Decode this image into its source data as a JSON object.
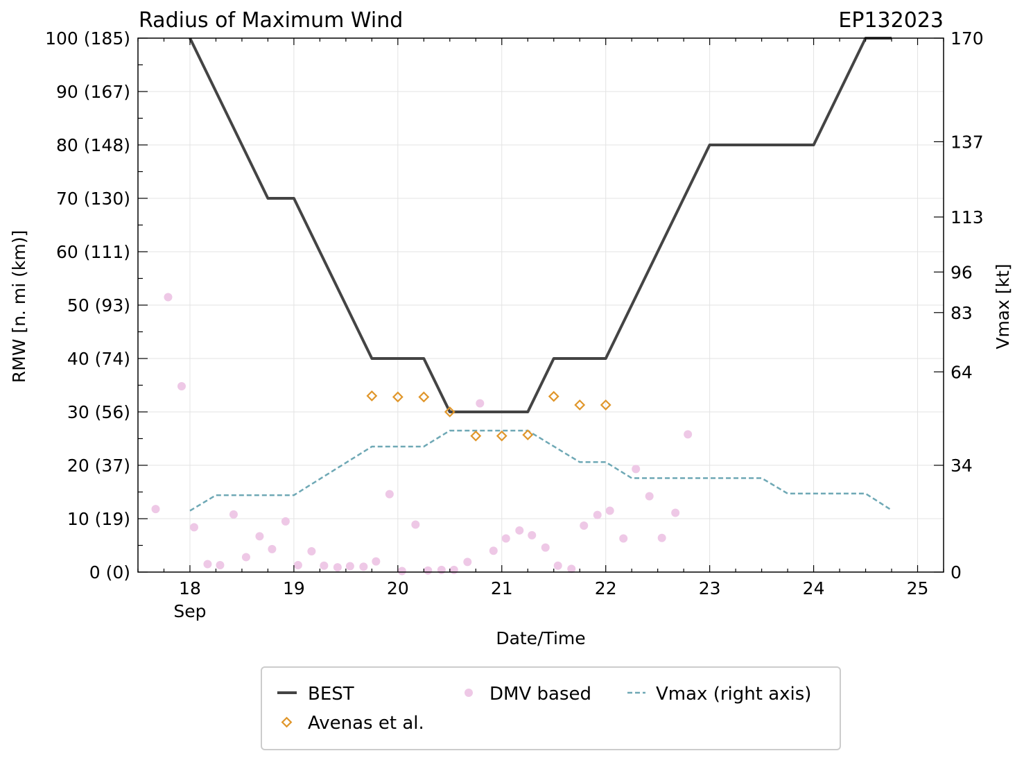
{
  "chart_data": {
    "type": "line",
    "title": "Radius of Maximum Wind",
    "storm_id": "EP132023",
    "xlabel": "Date/Time",
    "ylabel": "RMW [n. mi (km)]",
    "y2label": "Vmax [kt]",
    "xlim": [
      17.5,
      25.25
    ],
    "ylim": [
      0,
      100
    ],
    "x_ticks": [
      {
        "value": 18,
        "label": "18",
        "sublabel": "Sep"
      },
      {
        "value": 19,
        "label": "19",
        "sublabel": ""
      },
      {
        "value": 20,
        "label": "20",
        "sublabel": ""
      },
      {
        "value": 21,
        "label": "21",
        "sublabel": ""
      },
      {
        "value": 22,
        "label": "22",
        "sublabel": ""
      },
      {
        "value": 23,
        "label": "23",
        "sublabel": ""
      },
      {
        "value": 24,
        "label": "24",
        "sublabel": ""
      },
      {
        "value": 25,
        "label": "25",
        "sublabel": ""
      }
    ],
    "y_ticks": [
      {
        "value": 0,
        "label": "0 (0)"
      },
      {
        "value": 10,
        "label": "10 (19)"
      },
      {
        "value": 20,
        "label": "20 (37)"
      },
      {
        "value": 30,
        "label": "30 (56)"
      },
      {
        "value": 40,
        "label": "40 (74)"
      },
      {
        "value": 50,
        "label": "50 (93)"
      },
      {
        "value": 60,
        "label": "60 (111)"
      },
      {
        "value": 70,
        "label": "70 (130)"
      },
      {
        "value": 80,
        "label": "80 (148)"
      },
      {
        "value": 90,
        "label": "90 (167)"
      },
      {
        "value": 100,
        "label": "100 (185)"
      }
    ],
    "y2_ticks": [
      {
        "value": 0,
        "label": "0"
      },
      {
        "value": 20,
        "label": "34"
      },
      {
        "value": 37.5,
        "label": "64"
      },
      {
        "value": 48.6,
        "label": "83"
      },
      {
        "value": 56.2,
        "label": "96"
      },
      {
        "value": 66.5,
        "label": "113"
      },
      {
        "value": 80.6,
        "label": "137"
      },
      {
        "value": 100,
        "label": "170"
      }
    ],
    "legend": {
      "placement": "bottom-center",
      "entries": [
        "BEST",
        "DMV based",
        "Vmax (right axis)",
        "Avenas et al."
      ]
    },
    "colors": {
      "best": "#444444",
      "avenas": "#e0962a",
      "dmv": "#eec8e6",
      "vmax": "#6ea8b5"
    },
    "series": [
      {
        "name": "BEST",
        "style": "solid",
        "x": [
          18.0,
          18.75,
          19.0,
          19.75,
          20.0,
          20.25,
          20.5,
          20.75,
          21.0,
          21.25,
          21.5,
          21.75,
          22.0,
          23.0,
          23.25,
          23.5,
          23.75,
          24.0,
          24.5,
          24.75
        ],
        "y": [
          100,
          70,
          70,
          40,
          40,
          40,
          30,
          30,
          30,
          30,
          40,
          40,
          40,
          80,
          80,
          80,
          80,
          80,
          100,
          100
        ]
      },
      {
        "name": "Avenas et al.",
        "style": "diamond",
        "x": [
          19.75,
          20.0,
          20.25,
          20.5,
          20.75,
          21.0,
          21.25,
          21.5,
          21.75,
          22.0
        ],
        "y": [
          33,
          32.8,
          32.8,
          30,
          25.5,
          25.5,
          25.7,
          32.9,
          31.3,
          31.3
        ]
      },
      {
        "name": "DMV based",
        "style": "point",
        "x": [
          17.67,
          17.79,
          17.92,
          18.04,
          18.17,
          18.29,
          18.42,
          18.54,
          18.67,
          18.79,
          18.92,
          19.04,
          19.17,
          19.29,
          19.42,
          19.54,
          19.67,
          19.79,
          19.92,
          20.04,
          20.17,
          20.29,
          20.42,
          20.54,
          20.67,
          20.79,
          20.92,
          21.04,
          21.17,
          21.29,
          21.42,
          21.54,
          21.67,
          21.79,
          21.92,
          22.04,
          22.17,
          22.29,
          22.42,
          22.54,
          22.67,
          22.79
        ],
        "y": [
          11.8,
          51.5,
          34.8,
          8.4,
          1.5,
          1.3,
          10.8,
          2.8,
          6.7,
          4.3,
          9.5,
          1.3,
          3.9,
          1.2,
          0.9,
          1.1,
          1.0,
          2.0,
          14.6,
          0.2,
          8.9,
          0.3,
          0.4,
          0.4,
          1.9,
          31.6,
          4.0,
          6.3,
          7.8,
          6.9,
          4.6,
          1.2,
          0.6,
          8.7,
          10.7,
          11.5,
          6.3,
          19.3,
          14.2,
          6.4,
          11.1,
          25.8
        ]
      },
      {
        "name": "Vmax (right axis)",
        "style": "dashed",
        "x": [
          18.0,
          18.25,
          19.0,
          19.75,
          20.25,
          20.5,
          21.25,
          21.75,
          22.0,
          22.25,
          23.5,
          23.75,
          24.5,
          24.75
        ],
        "y": [
          11.5,
          14.4,
          14.4,
          23.5,
          23.5,
          26.5,
          26.5,
          20.6,
          20.6,
          17.6,
          17.6,
          14.7,
          14.7,
          11.6
        ]
      }
    ]
  }
}
